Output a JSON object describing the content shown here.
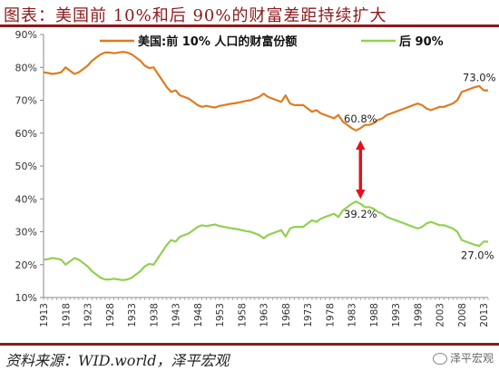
{
  "header": {
    "title": "图表：美国前 10%和后 90%的财富差距持续扩大"
  },
  "footer": {
    "source": "资料来源：WID.world，泽平宏观",
    "watermark": "泽平宏观"
  },
  "chart_data": {
    "type": "line",
    "xlim": [
      1913,
      2014
    ],
    "ylim": [
      10,
      90
    ],
    "yticks": [
      10,
      20,
      30,
      40,
      50,
      60,
      70,
      80,
      90
    ],
    "ytick_format": "{v}%",
    "xticks": [
      1913,
      1918,
      1923,
      1928,
      1933,
      1938,
      1943,
      1948,
      1953,
      1958,
      1963,
      1968,
      1973,
      1978,
      1983,
      1988,
      1993,
      1998,
      2003,
      2008,
      2013
    ],
    "grid": false,
    "legend_position": "top-center",
    "colors": {
      "top10": "#e07b1f",
      "bottom90": "#92d050",
      "arrow": "#e3121b"
    },
    "series": [
      {
        "name": "美国:前 10% 人口的财富份额",
        "x": [
          1913,
          1914,
          1915,
          1916,
          1917,
          1918,
          1919,
          1920,
          1921,
          1922,
          1923,
          1924,
          1925,
          1926,
          1927,
          1928,
          1929,
          1930,
          1931,
          1932,
          1933,
          1934,
          1935,
          1936,
          1937,
          1938,
          1939,
          1940,
          1941,
          1942,
          1943,
          1944,
          1945,
          1946,
          1947,
          1948,
          1949,
          1950,
          1951,
          1952,
          1953,
          1954,
          1955,
          1956,
          1957,
          1958,
          1959,
          1960,
          1961,
          1962,
          1963,
          1964,
          1965,
          1966,
          1967,
          1968,
          1969,
          1970,
          1971,
          1972,
          1973,
          1974,
          1975,
          1976,
          1977,
          1978,
          1979,
          1980,
          1981,
          1982,
          1983,
          1984,
          1985,
          1986,
          1987,
          1988,
          1989,
          1990,
          1991,
          1992,
          1993,
          1994,
          1995,
          1996,
          1997,
          1998,
          1999,
          2000,
          2001,
          2002,
          2003,
          2004,
          2005,
          2006,
          2007,
          2008,
          2009,
          2010,
          2011,
          2012,
          2013,
          2014
        ],
        "values": [
          78.5,
          78.3,
          78.0,
          78.2,
          78.5,
          80.0,
          79.0,
          78.0,
          78.5,
          79.5,
          80.5,
          82.0,
          83.0,
          84.0,
          84.5,
          84.5,
          84.3,
          84.5,
          84.7,
          84.5,
          84.0,
          83.0,
          82.0,
          80.5,
          79.8,
          80.0,
          78.0,
          76.0,
          74.0,
          72.5,
          73.0,
          71.5,
          71.0,
          70.5,
          69.5,
          68.5,
          68.0,
          68.3,
          68.0,
          67.8,
          68.3,
          68.5,
          68.8,
          69.0,
          69.2,
          69.5,
          69.8,
          70.0,
          70.5,
          71.0,
          72.0,
          71.0,
          70.5,
          70.0,
          69.5,
          71.5,
          69.0,
          68.5,
          68.5,
          68.5,
          67.5,
          66.5,
          67.0,
          66.0,
          65.5,
          65.0,
          64.5,
          65.5,
          63.5,
          62.5,
          61.5,
          60.8,
          61.5,
          62.5,
          62.5,
          63.0,
          64.0,
          64.5,
          65.5,
          66.0,
          66.5,
          67.0,
          67.5,
          68.0,
          68.5,
          69.0,
          68.5,
          67.5,
          67.0,
          67.5,
          68.0,
          68.0,
          68.5,
          69.0,
          70.0,
          72.5,
          73.0,
          73.5,
          74.0,
          74.3,
          73.0,
          73.0
        ]
      },
      {
        "name": "后 90%",
        "x": [
          1913,
          1914,
          1915,
          1916,
          1917,
          1918,
          1919,
          1920,
          1921,
          1922,
          1923,
          1924,
          1925,
          1926,
          1927,
          1928,
          1929,
          1930,
          1931,
          1932,
          1933,
          1934,
          1935,
          1936,
          1937,
          1938,
          1939,
          1940,
          1941,
          1942,
          1943,
          1944,
          1945,
          1946,
          1947,
          1948,
          1949,
          1950,
          1951,
          1952,
          1953,
          1954,
          1955,
          1956,
          1957,
          1958,
          1959,
          1960,
          1961,
          1962,
          1963,
          1964,
          1965,
          1966,
          1967,
          1968,
          1969,
          1970,
          1971,
          1972,
          1973,
          1974,
          1975,
          1976,
          1977,
          1978,
          1979,
          1980,
          1981,
          1982,
          1983,
          1984,
          1985,
          1986,
          1987,
          1988,
          1989,
          1990,
          1991,
          1992,
          1993,
          1994,
          1995,
          1996,
          1997,
          1998,
          1999,
          2000,
          2001,
          2002,
          2003,
          2004,
          2005,
          2006,
          2007,
          2008,
          2009,
          2010,
          2011,
          2012,
          2013,
          2014
        ],
        "values": [
          21.5,
          21.7,
          22.0,
          21.8,
          21.5,
          20.0,
          21.0,
          22.0,
          21.5,
          20.5,
          19.5,
          18.0,
          17.0,
          16.0,
          15.5,
          15.5,
          15.7,
          15.5,
          15.3,
          15.5,
          16.0,
          17.0,
          18.0,
          19.5,
          20.2,
          20.0,
          22.0,
          24.0,
          26.0,
          27.5,
          27.0,
          28.5,
          29.0,
          29.5,
          30.5,
          31.5,
          32.0,
          31.7,
          32.0,
          32.2,
          31.7,
          31.5,
          31.2,
          31.0,
          30.8,
          30.5,
          30.2,
          30.0,
          29.5,
          29.0,
          28.0,
          29.0,
          29.5,
          30.0,
          30.5,
          28.5,
          31.0,
          31.5,
          31.5,
          31.5,
          32.5,
          33.5,
          33.0,
          34.0,
          34.5,
          35.0,
          35.5,
          34.5,
          36.5,
          37.5,
          38.5,
          39.2,
          38.5,
          37.5,
          37.5,
          37.0,
          36.0,
          35.5,
          34.5,
          34.0,
          33.5,
          33.0,
          32.5,
          32.0,
          31.5,
          31.0,
          31.5,
          32.5,
          33.0,
          32.5,
          32.0,
          32.0,
          31.5,
          31.0,
          30.0,
          27.5,
          27.0,
          26.5,
          26.0,
          25.7,
          27.0,
          27.0
        ]
      }
    ],
    "annotations": [
      {
        "text": "73.0%",
        "x": 2012,
        "y": 73.0,
        "series": 0
      },
      {
        "text": "60.8%",
        "x": 1985,
        "y": 60.8,
        "series": 0
      },
      {
        "text": "39.2%",
        "x": 1985,
        "y": 39.2,
        "series": 1
      },
      {
        "text": "27.0%",
        "x": 2012,
        "y": 27.0,
        "series": 1
      }
    ],
    "arrow": {
      "x": 1985,
      "y_from": 60.8,
      "y_to": 39.2
    }
  }
}
